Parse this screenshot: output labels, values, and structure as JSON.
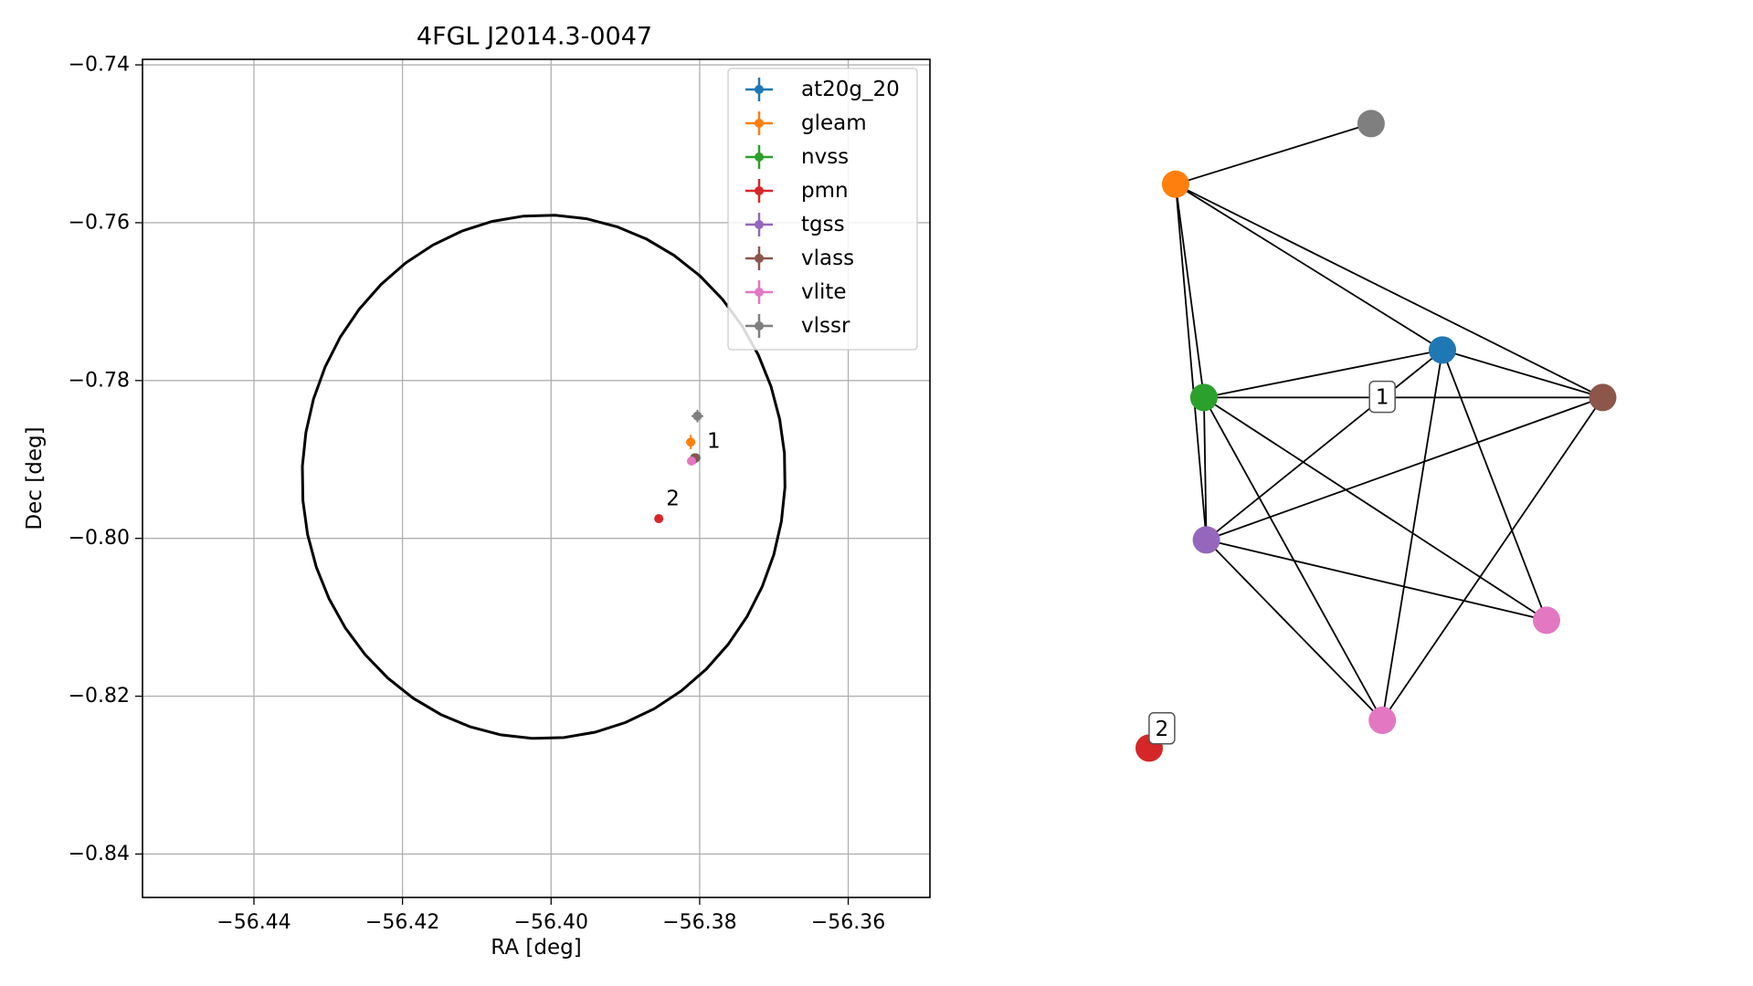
{
  "chart_data": [
    {
      "type": "scatter",
      "title": "4FGL J2014.3-0047",
      "xlabel": "RA [deg]",
      "ylabel": "Dec [deg]",
      "xlim": [
        -56.455,
        -56.349
      ],
      "ylim": [
        -0.8455,
        -0.7393
      ],
      "xticks": [
        -56.44,
        -56.42,
        -56.4,
        -56.38,
        -56.36
      ],
      "xtick_labels": [
        "−56.44",
        "−56.42",
        "−56.40",
        "−56.38",
        "−56.36"
      ],
      "yticks": [
        -0.74,
        -0.76,
        -0.78,
        -0.8,
        -0.82,
        -0.84
      ],
      "ytick_labels": [
        "−0.74",
        "−0.76",
        "−0.78",
        "−0.80",
        "−0.82",
        "−0.84"
      ],
      "grid": true,
      "legend_position": "top-right",
      "ellipse": {
        "center": [
          -56.401,
          -0.7922
        ],
        "semi_axis_ra": 0.0325,
        "semi_axis_dec": 0.0332,
        "angle_deg": -10,
        "color": "#000000"
      },
      "series": [
        {
          "name": "at20g_20",
          "color": "#1f77b4",
          "x": -56.3805,
          "y": -0.7898,
          "xerr": 0.0005,
          "yerr": 0.0005
        },
        {
          "name": "gleam",
          "color": "#ff7f0e",
          "x": -56.3812,
          "y": -0.7878,
          "xerr": 0.0006,
          "yerr": 0.0009
        },
        {
          "name": "nvss",
          "color": "#2ca02c",
          "x": -56.3807,
          "y": -0.7898,
          "xerr": 0.0003,
          "yerr": 0.0003
        },
        {
          "name": "pmn",
          "color": "#d62728",
          "x": -56.3855,
          "y": -0.7975,
          "xerr": 0,
          "yerr": 0
        },
        {
          "name": "tgss",
          "color": "#9467bd",
          "x": -56.3808,
          "y": -0.79,
          "xerr": 0.0003,
          "yerr": 0.0003
        },
        {
          "name": "vlass",
          "color": "#8c564b",
          "x": -56.3806,
          "y": -0.7898,
          "xerr": 0.0002,
          "yerr": 0.0002
        },
        {
          "name": "vlite",
          "color": "#e377c2",
          "x": -56.3811,
          "y": -0.7902,
          "xerr": 0.0005,
          "yerr": 0.0005
        },
        {
          "name": "vlssr",
          "color": "#7f7f7f",
          "x": -56.3803,
          "y": -0.7845,
          "xerr": 0.0008,
          "yerr": 0.0008
        }
      ],
      "annotations": [
        {
          "text": "1",
          "x": -56.379,
          "y": -0.7885
        },
        {
          "text": "2",
          "x": -56.3845,
          "y": -0.7958
        }
      ]
    },
    {
      "type": "network",
      "node_colors": {
        "at20g_20": "#1f77b4",
        "gleam": "#ff7f0e",
        "nvss": "#2ca02c",
        "pmn": "#d62728",
        "tgss": "#9467bd",
        "vlass": "#8c564b",
        "vlite": "#e377c2",
        "vlssr": "#7f7f7f"
      },
      "nodes": [
        {
          "id": "vlssr",
          "color": "#7f7f7f",
          "x": 0.497,
          "y": 0.962
        },
        {
          "id": "gleam",
          "color": "#ff7f0e",
          "x": 0.097,
          "y": 0.879
        },
        {
          "id": "at20g_20",
          "color": "#1f77b4",
          "x": 0.643,
          "y": 0.652
        },
        {
          "id": "nvss",
          "color": "#2ca02c",
          "x": 0.155,
          "y": 0.587
        },
        {
          "id": "vlass",
          "color": "#8c564b",
          "x": 0.971,
          "y": 0.587
        },
        {
          "id": "tgss",
          "color": "#9467bd",
          "x": 0.16,
          "y": 0.392
        },
        {
          "id": "vlite_a",
          "color": "#e377c2",
          "x": 0.856,
          "y": 0.282
        },
        {
          "id": "vlite_b",
          "color": "#e377c2",
          "x": 0.52,
          "y": 0.145
        },
        {
          "id": "pmn",
          "color": "#d62728",
          "x": 0.043,
          "y": 0.107
        }
      ],
      "edges": [
        [
          "vlssr",
          "gleam"
        ],
        [
          "gleam",
          "at20g_20"
        ],
        [
          "gleam",
          "vlass"
        ],
        [
          "gleam",
          "nvss"
        ],
        [
          "gleam",
          "tgss"
        ],
        [
          "at20g_20",
          "nvss"
        ],
        [
          "at20g_20",
          "vlass"
        ],
        [
          "at20g_20",
          "tgss"
        ],
        [
          "at20g_20",
          "vlite_a"
        ],
        [
          "at20g_20",
          "vlite_b"
        ],
        [
          "nvss",
          "vlass"
        ],
        [
          "nvss",
          "tgss"
        ],
        [
          "nvss",
          "vlite_a"
        ],
        [
          "nvss",
          "vlite_b"
        ],
        [
          "vlass",
          "tgss"
        ],
        [
          "vlass",
          "vlite_b"
        ],
        [
          "tgss",
          "vlite_a"
        ],
        [
          "tgss",
          "vlite_b"
        ]
      ],
      "labels": [
        {
          "text": "1",
          "x": 0.52,
          "y": 0.588
        },
        {
          "text": "2",
          "x": 0.069,
          "y": 0.134
        }
      ]
    }
  ]
}
